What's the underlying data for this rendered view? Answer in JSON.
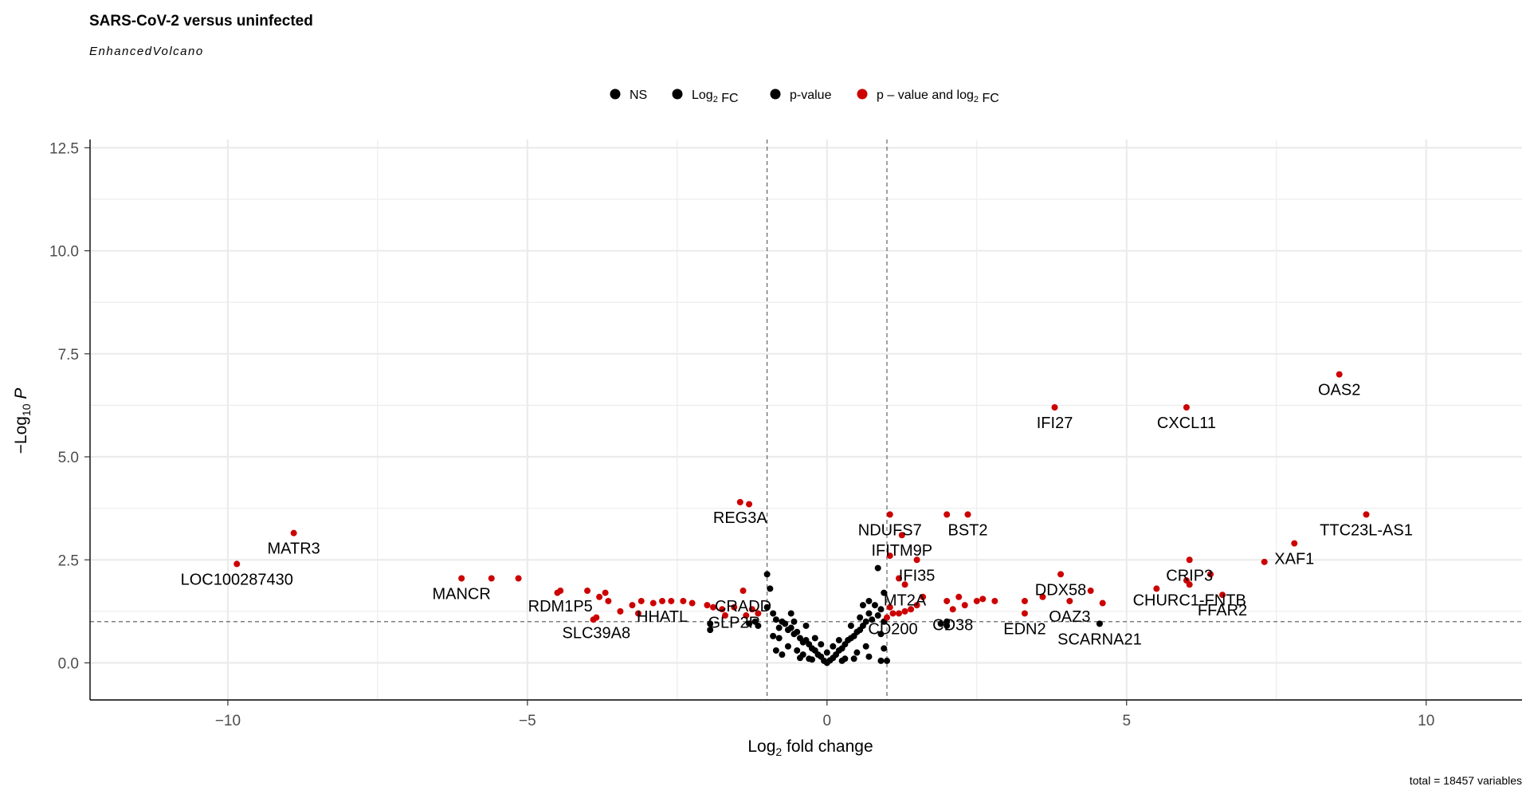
{
  "chart_data": {
    "type": "scatter",
    "title": "SARS-CoV-2 versus uninfected",
    "subtitle": "EnhancedVolcano",
    "xlabel": "Log2 fold change",
    "ylabel": "-Log10 P",
    "caption": "total = 18457 variables",
    "xlim": [
      -12.3,
      11.6
    ],
    "ylim": [
      -0.9,
      12.7
    ],
    "x_ticks": [
      -10,
      -5,
      0,
      5,
      10
    ],
    "x_tick_labels": [
      "-10",
      "-5",
      "0",
      "5",
      "10"
    ],
    "y_ticks": [
      0,
      2.5,
      5,
      7.5,
      10,
      12.5
    ],
    "y_tick_labels": [
      "0.0",
      "2.5",
      "5.0",
      "7.5",
      "10.0",
      "12.5"
    ],
    "grid": true,
    "fc_cutoff": 1,
    "p_cutoff_log10": 1,
    "legend": {
      "position": "top",
      "entries": [
        {
          "label": "NS",
          "color": "#000000"
        },
        {
          "label": "Log2 FC",
          "color": "#000000"
        },
        {
          "label": "p-value",
          "color": "#000000"
        },
        {
          "label": "p – value and log2 FC",
          "color": "#cc0000"
        }
      ]
    },
    "colors": {
      "significant": "#cc0000",
      "not_significant": "#000000",
      "grid": "#ebebeb",
      "cutoff_line": "#555555"
    },
    "series": [
      {
        "name": "p – value and log2 FC",
        "points": [
          [
            8.55,
            7.0
          ],
          [
            6.0,
            6.2
          ],
          [
            3.8,
            6.2
          ],
          [
            9.0,
            3.6
          ],
          [
            7.8,
            2.9
          ],
          [
            7.3,
            2.45
          ],
          [
            6.05,
            2.5
          ],
          [
            6.4,
            2.15
          ],
          [
            6.6,
            1.65
          ],
          [
            6.0,
            2.0
          ],
          [
            6.05,
            1.9
          ],
          [
            5.5,
            1.8
          ],
          [
            3.9,
            2.15
          ],
          [
            4.4,
            1.75
          ],
          [
            4.6,
            1.45
          ],
          [
            4.05,
            1.5
          ],
          [
            3.3,
            1.5
          ],
          [
            3.6,
            1.6
          ],
          [
            3.3,
            1.2
          ],
          [
            2.8,
            1.5
          ],
          [
            2.6,
            1.55
          ],
          [
            2.5,
            1.5
          ],
          [
            2.3,
            1.4
          ],
          [
            2.1,
            1.3
          ],
          [
            2.0,
            1.5
          ],
          [
            2.2,
            1.6
          ],
          [
            2.0,
            3.6
          ],
          [
            2.35,
            3.6
          ],
          [
            1.05,
            3.6
          ],
          [
            1.25,
            3.1
          ],
          [
            1.05,
            2.6
          ],
          [
            1.5,
            2.5
          ],
          [
            1.2,
            2.05
          ],
          [
            1.3,
            1.9
          ],
          [
            1.6,
            1.6
          ],
          [
            1.5,
            1.4
          ],
          [
            1.4,
            1.3
          ],
          [
            1.3,
            1.25
          ],
          [
            1.2,
            1.2
          ],
          [
            1.1,
            1.2
          ],
          [
            1.0,
            1.1
          ],
          [
            1.05,
            1.35
          ],
          [
            -1.45,
            3.9
          ],
          [
            -1.3,
            3.85
          ],
          [
            -1.4,
            1.75
          ],
          [
            -1.25,
            1.3
          ],
          [
            -1.15,
            1.2
          ],
          [
            -1.35,
            1.15
          ],
          [
            -1.55,
            1.35
          ],
          [
            -1.75,
            1.3
          ],
          [
            -1.9,
            1.35
          ],
          [
            -1.7,
            1.15
          ],
          [
            -2.0,
            1.4
          ],
          [
            -2.25,
            1.45
          ],
          [
            -2.4,
            1.5
          ],
          [
            -2.6,
            1.5
          ],
          [
            -2.75,
            1.5
          ],
          [
            -2.9,
            1.45
          ],
          [
            -3.1,
            1.5
          ],
          [
            -3.25,
            1.4
          ],
          [
            -3.45,
            1.25
          ],
          [
            -3.15,
            1.2
          ],
          [
            -3.7,
            1.7
          ],
          [
            -3.65,
            1.5
          ],
          [
            -3.8,
            1.6
          ],
          [
            -3.9,
            1.05
          ],
          [
            -3.85,
            1.1
          ],
          [
            -4.0,
            1.75
          ],
          [
            -4.45,
            1.75
          ],
          [
            -4.5,
            1.7
          ],
          [
            -5.15,
            2.05
          ],
          [
            -5.6,
            2.05
          ],
          [
            -6.1,
            2.05
          ],
          [
            -8.9,
            3.15
          ],
          [
            -9.85,
            2.4
          ]
        ]
      },
      {
        "name": "NS",
        "points": [
          [
            -1.0,
            2.15
          ],
          [
            -0.95,
            1.8
          ],
          [
            -1.0,
            1.35
          ],
          [
            -0.9,
            1.2
          ],
          [
            -0.85,
            1.05
          ],
          [
            -0.8,
            0.85
          ],
          [
            -0.75,
            1.0
          ],
          [
            -0.7,
            0.95
          ],
          [
            -0.65,
            0.8
          ],
          [
            -0.6,
            0.85
          ],
          [
            -0.55,
            0.7
          ],
          [
            -0.5,
            0.75
          ],
          [
            -0.45,
            0.6
          ],
          [
            -0.4,
            0.5
          ],
          [
            -0.35,
            0.55
          ],
          [
            -0.3,
            0.45
          ],
          [
            -0.25,
            0.35
          ],
          [
            -0.2,
            0.3
          ],
          [
            -0.15,
            0.2
          ],
          [
            -0.1,
            0.15
          ],
          [
            -0.05,
            0.05
          ],
          [
            0.0,
            0.0
          ],
          [
            0.05,
            0.06
          ],
          [
            0.1,
            0.12
          ],
          [
            0.15,
            0.2
          ],
          [
            0.2,
            0.3
          ],
          [
            0.25,
            0.35
          ],
          [
            0.3,
            0.45
          ],
          [
            0.35,
            0.55
          ],
          [
            0.4,
            0.6
          ],
          [
            0.45,
            0.65
          ],
          [
            0.5,
            0.75
          ],
          [
            0.55,
            0.8
          ],
          [
            0.6,
            0.9
          ],
          [
            0.65,
            1.0
          ],
          [
            0.7,
            1.2
          ],
          [
            0.75,
            1.05
          ],
          [
            0.8,
            1.4
          ],
          [
            0.85,
            1.15
          ],
          [
            0.9,
            1.3
          ],
          [
            0.85,
            2.3
          ],
          [
            0.95,
            1.7
          ],
          [
            0.7,
            1.5
          ],
          [
            0.6,
            1.4
          ],
          [
            -0.6,
            1.2
          ],
          [
            -0.8,
            0.6
          ],
          [
            -0.75,
            0.2
          ],
          [
            -0.5,
            0.3
          ],
          [
            -0.4,
            0.2
          ],
          [
            -0.3,
            0.1
          ],
          [
            0.3,
            0.1
          ],
          [
            0.5,
            0.25
          ],
          [
            0.7,
            0.15
          ],
          [
            0.9,
            0.05
          ],
          [
            1.0,
            0.05
          ],
          [
            0.95,
            0.35
          ],
          [
            0.9,
            0.7
          ],
          [
            0.95,
            1.0
          ],
          [
            -0.9,
            0.65
          ],
          [
            -0.85,
            0.3
          ],
          [
            -1.95,
            0.8
          ],
          [
            -1.95,
            0.95
          ],
          [
            -1.2,
            1.0
          ],
          [
            -1.3,
            0.95
          ],
          [
            -1.15,
            0.9
          ],
          [
            2.0,
            1.0
          ],
          [
            2.0,
            0.9
          ],
          [
            1.9,
            0.95
          ],
          [
            4.55,
            0.95
          ],
          [
            -0.2,
            0.6
          ],
          [
            0.2,
            0.55
          ],
          [
            0.1,
            0.4
          ],
          [
            -0.1,
            0.45
          ],
          [
            0.0,
            0.25
          ],
          [
            0.4,
            0.9
          ],
          [
            -0.35,
            0.9
          ],
          [
            0.55,
            1.1
          ],
          [
            -0.55,
            1.0
          ],
          [
            0.65,
            0.4
          ],
          [
            -0.65,
            0.4
          ],
          [
            0.25,
            0.05
          ],
          [
            -0.25,
            0.08
          ],
          [
            0.45,
            0.1
          ],
          [
            -0.45,
            0.12
          ]
        ]
      }
    ],
    "labels": [
      {
        "text": "OAS2",
        "x": 8.55,
        "y": 7.0
      },
      {
        "text": "CXCL11",
        "x": 6.0,
        "y": 6.2
      },
      {
        "text": "IFI27",
        "x": 3.8,
        "y": 6.2
      },
      {
        "text": "TTC23L-AS1",
        "x": 9.0,
        "y": 3.6
      },
      {
        "text": "XAF1",
        "x": 7.8,
        "y": 2.9
      },
      {
        "text": "CRIP3",
        "x": 6.05,
        "y": 2.5
      },
      {
        "text": "CHURC1-FNTB",
        "x": 6.05,
        "y": 1.9
      },
      {
        "text": "FFAR2",
        "x": 6.6,
        "y": 1.65
      },
      {
        "text": "DDX58",
        "x": 3.9,
        "y": 2.15
      },
      {
        "text": "OAZ3",
        "x": 4.05,
        "y": 1.5
      },
      {
        "text": "SCARNA21",
        "x": 4.55,
        "y": 0.95
      },
      {
        "text": "EDN2",
        "x": 3.3,
        "y": 1.2
      },
      {
        "text": "CD38",
        "x": 2.1,
        "y": 1.3
      },
      {
        "text": "BST2",
        "x": 2.35,
        "y": 3.6
      },
      {
        "text": "NDUFS7",
        "x": 1.05,
        "y": 3.6
      },
      {
        "text": "IFITM9P",
        "x": 1.25,
        "y": 3.1
      },
      {
        "text": "IFI35",
        "x": 1.5,
        "y": 2.5
      },
      {
        "text": "MT2A",
        "x": 1.3,
        "y": 1.9
      },
      {
        "text": "CD200",
        "x": 1.1,
        "y": 1.2
      },
      {
        "text": "REG3A",
        "x": -1.45,
        "y": 3.9
      },
      {
        "text": "CRADD",
        "x": -1.4,
        "y": 1.75
      },
      {
        "text": "GLP2R",
        "x": -1.55,
        "y": 1.35
      },
      {
        "text": "HHATL",
        "x": -2.75,
        "y": 1.5
      },
      {
        "text": "SLC39A8",
        "x": -3.85,
        "y": 1.1
      },
      {
        "text": "RDM1P5",
        "x": -4.45,
        "y": 1.75
      },
      {
        "text": "MANCR",
        "x": -6.1,
        "y": 2.05
      },
      {
        "text": "MATR3",
        "x": -8.9,
        "y": 3.15
      },
      {
        "text": "LOC100287430",
        "x": -9.85,
        "y": 2.4
      }
    ]
  }
}
